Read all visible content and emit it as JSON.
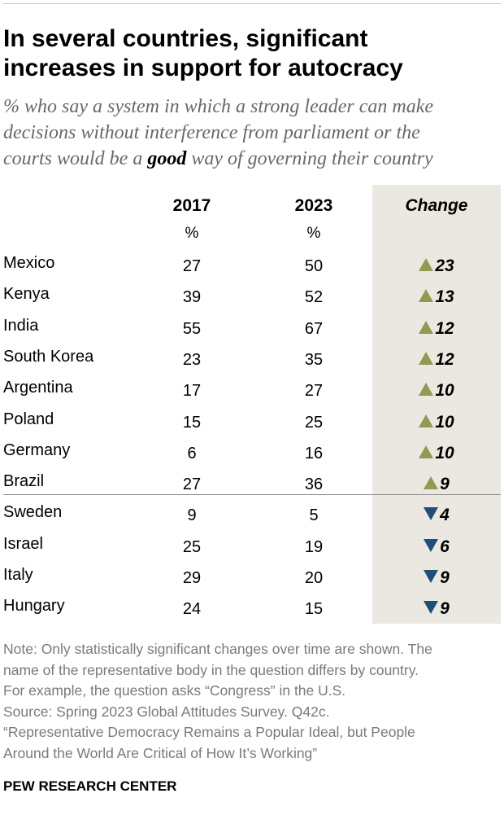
{
  "title": {
    "line1": "In several countries, significant",
    "line2": "increases in support for autocracy"
  },
  "subtitle": {
    "line1": "% who say a system in which a strong leader can make",
    "line2": "decisions without interference from parliament or the",
    "line3_before": "courts would be a ",
    "line3_emph": "good",
    "line3_after": " way of governing their country"
  },
  "headers": {
    "col_2017": "2017",
    "col_2023": "2023",
    "col_change": "Change",
    "unit_2017": "%",
    "unit_2023": "%"
  },
  "colors": {
    "increase": "#8e9b51",
    "decrease": "#1f4e79",
    "change_column_bg": "#ebe8e1"
  },
  "chart_data": {
    "type": "table",
    "title": "In several countries, significant increases in support for autocracy",
    "columns": [
      "2017",
      "2023",
      "Change"
    ],
    "unit": "%",
    "rows": [
      {
        "country": "Mexico",
        "v2017": 27,
        "v2023": 50,
        "change": 23,
        "direction": "up"
      },
      {
        "country": "Kenya",
        "v2017": 39,
        "v2023": 52,
        "change": 13,
        "direction": "up"
      },
      {
        "country": "India",
        "v2017": 55,
        "v2023": 67,
        "change": 12,
        "direction": "up"
      },
      {
        "country": "South Korea",
        "v2017": 23,
        "v2023": 35,
        "change": 12,
        "direction": "up"
      },
      {
        "country": "Argentina",
        "v2017": 17,
        "v2023": 27,
        "change": 10,
        "direction": "up"
      },
      {
        "country": "Poland",
        "v2017": 15,
        "v2023": 25,
        "change": 10,
        "direction": "up"
      },
      {
        "country": "Germany",
        "v2017": 6,
        "v2023": 16,
        "change": 10,
        "direction": "up"
      },
      {
        "country": "Brazil",
        "v2017": 27,
        "v2023": 36,
        "change": 9,
        "direction": "up"
      },
      {
        "country": "Sweden",
        "v2017": 9,
        "v2023": 5,
        "change": 4,
        "direction": "down"
      },
      {
        "country": "Israel",
        "v2017": 25,
        "v2023": 19,
        "change": 6,
        "direction": "down"
      },
      {
        "country": "Italy",
        "v2017": 29,
        "v2023": 20,
        "change": 9,
        "direction": "down"
      },
      {
        "country": "Hungary",
        "v2017": 24,
        "v2023": 15,
        "change": 9,
        "direction": "down"
      }
    ]
  },
  "note": {
    "line1": "Note: Only statistically significant changes over time are shown. The",
    "line2": "name of the representative body in the question differs by country.",
    "line3": "For example, the question asks “Congress” in the U.S.",
    "line4": "Source: Spring 2023 Global Attitudes Survey. Q42c.",
    "line5": "“Representative Democracy Remains a Popular Ideal, but People",
    "line6": "Around the World Are Critical of How It’s Working”"
  },
  "footer": "PEW RESEARCH CENTER"
}
